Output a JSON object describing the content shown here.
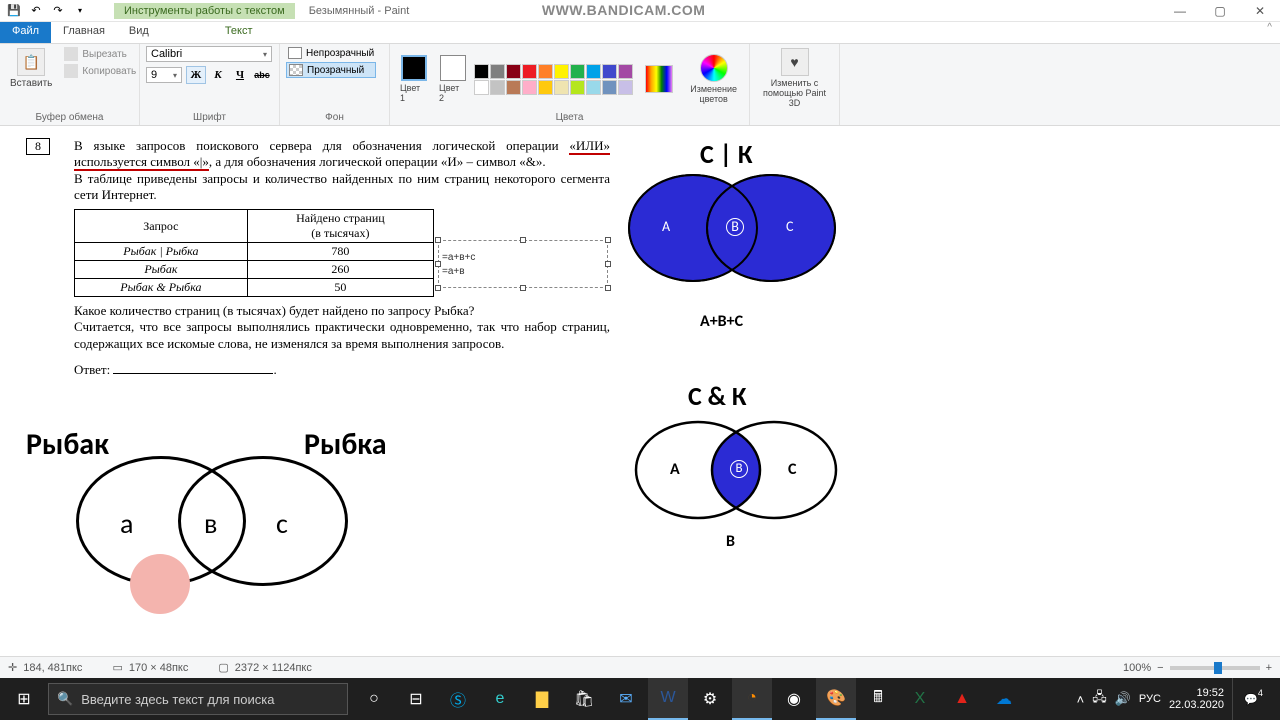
{
  "watermark": "WWW.BANDICAM.COM",
  "titlebar": {
    "tooltab": "Инструменты работы с текстом",
    "title": "Безымянный - Paint"
  },
  "tabs": {
    "file": "Файл",
    "home": "Главная",
    "view": "Вид",
    "text": "Текст"
  },
  "ribbon": {
    "clipboard": {
      "label": "Буфер обмена",
      "paste": "Вставить",
      "cut": "Вырезать",
      "copy": "Копировать"
    },
    "font": {
      "label": "Шрифт",
      "family": "Calibri",
      "size": "9",
      "bold": "Ж",
      "italic": "К",
      "under": "Ч",
      "strike": "abc"
    },
    "background": {
      "label": "Фон",
      "opaque": "Непрозрачный",
      "transparent": "Прозрачный"
    },
    "colors": {
      "label": "Цвета",
      "c1": "Цвет 1",
      "c2": "Цвет 2",
      "edit": "Изменение цветов",
      "paint3d": "Изменить с помощью Paint 3D",
      "current1": "#000000",
      "current2": "#ffffff",
      "palette": [
        "#000000",
        "#7f7f7f",
        "#880015",
        "#ed1c24",
        "#ff7f27",
        "#fff200",
        "#22b14c",
        "#00a2e8",
        "#3f48cc",
        "#a349a4",
        "#ffffff",
        "#c3c3c3",
        "#b97a57",
        "#ffaec9",
        "#ffc90e",
        "#efe4b0",
        "#b5e61d",
        "#99d9ea",
        "#7092be",
        "#c8bfe7"
      ]
    }
  },
  "problem": {
    "num": "8",
    "p1a": "В языке запросов поискового сервера для обозначения логической операции ",
    "p1b": "«ИЛИ» используется символ «|»",
    "p1c": ", а для обозначения логической операции «И» – символ «&».",
    "p2": "В таблице приведены запросы и количество найденных по ним страниц некоторого сегмента сети Интернет.",
    "th1": "Запрос",
    "th2a": "Найдено страниц",
    "th2b": "(в тысячах)",
    "r1a": "Рыбак | Рыбка",
    "r1b": "780",
    "r2a": "Рыбак",
    "r2b": "260",
    "r3a": "Рыбак & Рыбка",
    "r3b": "50",
    "ann1": "=а+в+с",
    "ann2": "=а+в",
    "p3": "Какое количество страниц (в тысячах) будет найдено по запросу Рыбка?",
    "p4": "Считается, что все запросы выполнялись практически одновременно, так что набор страниц, содержащих все искомые слова, не изменялся за время выполнения запросов.",
    "ans": "Ответ:"
  },
  "venn1": {
    "title": "С | К",
    "sub": "A+B+C",
    "A": "A",
    "B": "B",
    "C": "C",
    "fill": "#2b2bd4",
    "stroke": "#000000"
  },
  "venn2": {
    "title": "С & К",
    "sub": "B",
    "A": "A",
    "B": "B",
    "C": "C",
    "fill": "#2b2bd4"
  },
  "venn3": {
    "left": "Рыбак",
    "right": "Рыбка",
    "a": "а",
    "b": "в",
    "c": "с"
  },
  "status": {
    "pos": "184, 481пкс",
    "sel": "170 × 48пкс",
    "size": "2372 × 1124пкс",
    "zoom": "100%"
  },
  "taskbar": {
    "search_placeholder": "Введите здесь текст для поиска",
    "time": "19:52",
    "date": "22.03.2020",
    "lang": "РУС",
    "notif_count": "4"
  }
}
